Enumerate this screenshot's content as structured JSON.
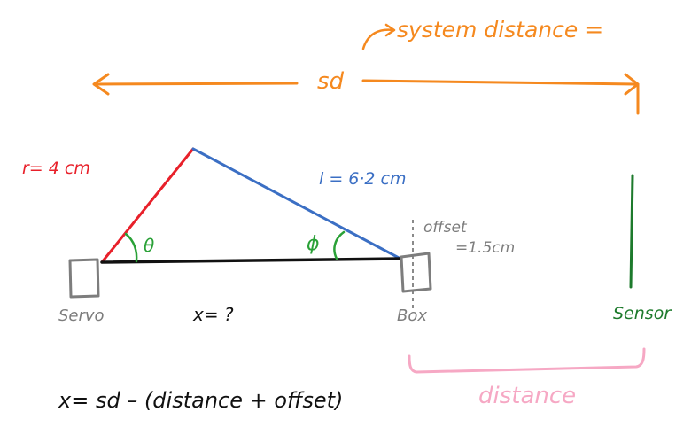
{
  "labels": {
    "system_distance": "system distance =",
    "sd": "sd",
    "radius": "r= 4 cm",
    "length": "l = 6·2 cm",
    "theta": "θ",
    "phi": "ϕ",
    "offset_name": "offset",
    "offset_value": "=1.5cm",
    "servo": "Servo",
    "x_unknown": "x= ?",
    "box": "Box",
    "sensor": "Sensor",
    "distance": "distance",
    "formula": "x= sd – (distance + offset)"
  },
  "colors": {
    "orange": "#f5891f",
    "red": "#e8202a",
    "blue": "#3b6fc4",
    "green": "#2aa137",
    "dark_green": "#1d7a2c",
    "black": "#111111",
    "gray": "#7d7d7d",
    "pink": "#f6a8c4"
  }
}
